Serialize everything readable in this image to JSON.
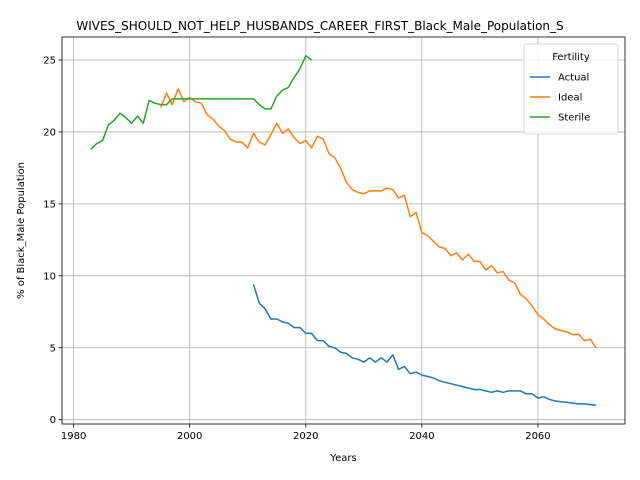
{
  "chart_data": {
    "type": "line",
    "title": "WIVES_SHOULD_NOT_HELP_HUSBANDS_CAREER_FIRST_Black_Male_Population_S",
    "xlabel": "Years",
    "ylabel": "% of Black_Male Population",
    "xlim": [
      1978,
      2075
    ],
    "ylim": [
      -0.3,
      26.6
    ],
    "xticks": [
      1980,
      2000,
      2020,
      2040,
      2060
    ],
    "yticks": [
      0,
      5,
      10,
      15,
      20,
      25
    ],
    "grid": true,
    "legend": {
      "title": "Fertility",
      "placement": "top-right"
    },
    "series": [
      {
        "name": "Actual",
        "color": "#1f77b4",
        "x": [
          2011,
          2012,
          2013,
          2014,
          2015,
          2016,
          2017,
          2018,
          2019,
          2020,
          2021,
          2022,
          2023,
          2024,
          2025,
          2026,
          2027,
          2028,
          2029,
          2030,
          2031,
          2032,
          2033,
          2034,
          2035,
          2036,
          2037,
          2038,
          2039,
          2040,
          2041,
          2042,
          2043,
          2044,
          2045,
          2046,
          2047,
          2048,
          2049,
          2050,
          2051,
          2052,
          2053,
          2054,
          2055,
          2056,
          2057,
          2058,
          2059,
          2060,
          2061,
          2062,
          2063,
          2064,
          2065,
          2066,
          2067,
          2068,
          2069,
          2070
        ],
        "values": [
          9.4,
          8.1,
          7.7,
          7.0,
          7.0,
          6.8,
          6.7,
          6.4,
          6.4,
          6.0,
          6.0,
          5.5,
          5.5,
          5.1,
          5.0,
          4.7,
          4.6,
          4.3,
          4.2,
          4.0,
          4.3,
          4.0,
          4.3,
          4.0,
          4.5,
          3.5,
          3.7,
          3.2,
          3.3,
          3.1,
          3.0,
          2.9,
          2.7,
          2.6,
          2.5,
          2.4,
          2.3,
          2.2,
          2.1,
          2.1,
          2.0,
          1.9,
          2.0,
          1.9,
          2.0,
          2.0,
          2.0,
          1.8,
          1.8,
          1.5,
          1.6,
          1.4,
          1.3,
          1.25,
          1.2,
          1.15,
          1.1,
          1.1,
          1.05,
          1.0
        ]
      },
      {
        "name": "Ideal",
        "color": "#ff7f0e",
        "x": [
          1995,
          1996,
          1997,
          1998,
          1999,
          2000,
          2001,
          2002,
          2003,
          2004,
          2005,
          2006,
          2007,
          2008,
          2009,
          2010,
          2011,
          2012,
          2013,
          2014,
          2015,
          2016,
          2017,
          2018,
          2019,
          2020,
          2021,
          2022,
          2023,
          2024,
          2025,
          2026,
          2027,
          2028,
          2029,
          2030,
          2031,
          2032,
          2033,
          2034,
          2035,
          2036,
          2037,
          2038,
          2039,
          2040,
          2041,
          2042,
          2043,
          2044,
          2045,
          2046,
          2047,
          2048,
          2049,
          2050,
          2051,
          2052,
          2053,
          2054,
          2055,
          2056,
          2057,
          2058,
          2059,
          2060,
          2061,
          2062,
          2063,
          2064,
          2065,
          2066,
          2067,
          2068,
          2069,
          2070
        ],
        "values": [
          21.7,
          22.7,
          21.9,
          23.0,
          22.1,
          22.4,
          22.1,
          22.0,
          21.2,
          20.9,
          20.4,
          20.1,
          19.5,
          19.3,
          19.3,
          18.9,
          19.9,
          19.3,
          19.1,
          19.8,
          20.6,
          19.9,
          20.2,
          19.6,
          19.2,
          19.4,
          18.9,
          19.7,
          19.5,
          18.5,
          18.2,
          17.5,
          16.5,
          16.0,
          15.8,
          15.7,
          15.9,
          15.9,
          15.9,
          16.1,
          16.0,
          15.4,
          15.6,
          14.1,
          14.4,
          13.0,
          12.8,
          12.4,
          12.0,
          11.9,
          11.4,
          11.6,
          11.1,
          11.5,
          11.0,
          11.0,
          10.4,
          10.7,
          10.2,
          10.3,
          9.7,
          9.5,
          8.7,
          8.4,
          7.9,
          7.3,
          7.0,
          6.6,
          6.3,
          6.2,
          6.1,
          5.9,
          5.95,
          5.5,
          5.6,
          5.0
        ]
      },
      {
        "name": "Sterile",
        "color": "#2ca02c",
        "x": [
          1983,
          1984,
          1985,
          1986,
          1987,
          1988,
          1989,
          1990,
          1991,
          1992,
          1993,
          1994,
          1995,
          1996,
          1997,
          1998,
          1999,
          2000,
          2001,
          2002,
          2003,
          2004,
          2005,
          2006,
          2007,
          2008,
          2009,
          2010,
          2011,
          2012,
          2013,
          2014,
          2015,
          2016,
          2017,
          2018,
          2019,
          2020,
          2021
        ],
        "values": [
          18.8,
          19.2,
          19.4,
          20.5,
          20.8,
          21.3,
          21.0,
          20.6,
          21.1,
          20.6,
          22.2,
          22.0,
          21.9,
          21.9,
          22.3,
          22.3,
          22.3,
          22.3,
          22.3,
          22.3,
          22.3,
          22.3,
          22.3,
          22.3,
          22.3,
          22.3,
          22.3,
          22.3,
          22.3,
          21.9,
          21.6,
          21.6,
          22.5,
          22.9,
          23.1,
          23.8,
          24.4,
          25.3,
          25.0
        ]
      }
    ]
  }
}
